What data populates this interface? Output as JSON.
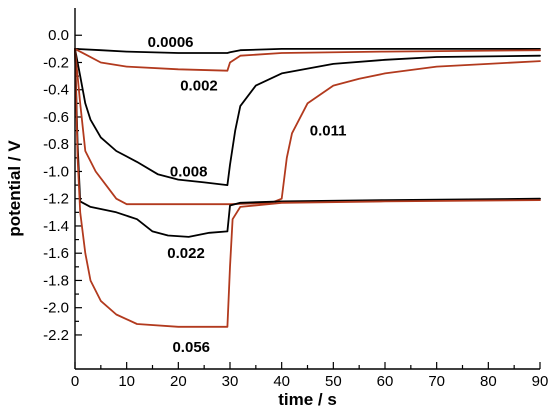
{
  "chart_data": {
    "type": "line",
    "xlabel": "time / s",
    "ylabel": "potential / V",
    "xlim": [
      0,
      90
    ],
    "ylim": [
      -2.45,
      0.2
    ],
    "xticks": [
      0,
      10,
      20,
      30,
      40,
      50,
      60,
      70,
      80,
      90
    ],
    "yticks": [
      0.0,
      -0.2,
      -0.4,
      -0.6,
      -0.8,
      -1.0,
      -1.2,
      -1.4,
      -1.6,
      -1.8,
      -2.0,
      -2.2
    ],
    "ytick_labels": [
      "0.0",
      "-0.2",
      "-0.4",
      "-0.6",
      "-0.8",
      "-1.0",
      "-1.2",
      "-1.4",
      "-1.6",
      "-1.8",
      "-2.0",
      "-2.2"
    ],
    "grid": false,
    "series": [
      {
        "color": "#000000",
        "points": [
          [
            0,
            -0.1
          ],
          [
            5,
            -0.11
          ],
          [
            10,
            -0.12
          ],
          [
            20,
            -0.13
          ],
          [
            29.5,
            -0.13
          ],
          [
            30,
            -0.125
          ],
          [
            32,
            -0.11
          ],
          [
            40,
            -0.1
          ],
          [
            60,
            -0.1
          ],
          [
            90,
            -0.1
          ]
        ]
      },
      {
        "color": "#b23a1e",
        "points": [
          [
            0,
            -0.1
          ],
          [
            2,
            -0.14
          ],
          [
            5,
            -0.2
          ],
          [
            10,
            -0.23
          ],
          [
            20,
            -0.25
          ],
          [
            29.5,
            -0.26
          ],
          [
            30,
            -0.2
          ],
          [
            32,
            -0.15
          ],
          [
            40,
            -0.13
          ],
          [
            60,
            -0.12
          ],
          [
            90,
            -0.11
          ]
        ]
      },
      {
        "color": "#000000",
        "points": [
          [
            0,
            -0.1
          ],
          [
            1,
            -0.3
          ],
          [
            2,
            -0.5
          ],
          [
            3,
            -0.62
          ],
          [
            5,
            -0.75
          ],
          [
            8,
            -0.85
          ],
          [
            12,
            -0.93
          ],
          [
            16,
            -1.02
          ],
          [
            20,
            -1.06
          ],
          [
            25,
            -1.08
          ],
          [
            29.5,
            -1.1
          ],
          [
            30,
            -0.95
          ],
          [
            31,
            -0.7
          ],
          [
            32,
            -0.52
          ],
          [
            35,
            -0.37
          ],
          [
            40,
            -0.28
          ],
          [
            50,
            -0.21
          ],
          [
            60,
            -0.18
          ],
          [
            70,
            -0.16
          ],
          [
            90,
            -0.15
          ]
        ]
      },
      {
        "color": "#b23a1e",
        "points": [
          [
            0,
            -0.1
          ],
          [
            1,
            -0.5
          ],
          [
            2,
            -0.85
          ],
          [
            4,
            -1.0
          ],
          [
            6,
            -1.1
          ],
          [
            8,
            -1.2
          ],
          [
            10,
            -1.24
          ],
          [
            20,
            -1.24
          ],
          [
            30,
            -1.24
          ],
          [
            38,
            -1.23
          ],
          [
            40,
            -1.2
          ],
          [
            41,
            -0.9
          ],
          [
            42,
            -0.72
          ],
          [
            45,
            -0.5
          ],
          [
            50,
            -0.37
          ],
          [
            55,
            -0.32
          ],
          [
            60,
            -0.28
          ],
          [
            70,
            -0.23
          ],
          [
            80,
            -0.21
          ],
          [
            90,
            -0.19
          ]
        ]
      },
      {
        "color": "#000000",
        "points": [
          [
            0,
            -0.1
          ],
          [
            0.5,
            -0.8
          ],
          [
            1,
            -1.22
          ],
          [
            3,
            -1.26
          ],
          [
            8,
            -1.3
          ],
          [
            12,
            -1.35
          ],
          [
            15,
            -1.44
          ],
          [
            18,
            -1.47
          ],
          [
            22,
            -1.48
          ],
          [
            26,
            -1.45
          ],
          [
            29.5,
            -1.44
          ],
          [
            30,
            -1.25
          ],
          [
            32,
            -1.23
          ],
          [
            40,
            -1.22
          ],
          [
            60,
            -1.21
          ],
          [
            90,
            -1.2
          ]
        ]
      },
      {
        "color": "#b23a1e",
        "points": [
          [
            0,
            -0.1
          ],
          [
            0.5,
            -0.9
          ],
          [
            1,
            -1.3
          ],
          [
            2,
            -1.6
          ],
          [
            3,
            -1.8
          ],
          [
            5,
            -1.95
          ],
          [
            8,
            -2.05
          ],
          [
            12,
            -2.12
          ],
          [
            20,
            -2.14
          ],
          [
            29.5,
            -2.14
          ],
          [
            30,
            -1.7
          ],
          [
            30.5,
            -1.35
          ],
          [
            32,
            -1.26
          ],
          [
            40,
            -1.23
          ],
          [
            60,
            -1.22
          ],
          [
            90,
            -1.21
          ]
        ]
      }
    ],
    "annotations": [
      {
        "text": "0.0006",
        "x": 18.5,
        "y": -0.05
      },
      {
        "text": "0.002",
        "x": 24,
        "y": -0.37
      },
      {
        "text": "0.008",
        "x": 22,
        "y": -1.0
      },
      {
        "text": "0.011",
        "x": 49,
        "y": -0.7
      },
      {
        "text": "0.022",
        "x": 21.5,
        "y": -1.6
      },
      {
        "text": "0.056",
        "x": 22.5,
        "y": -2.29
      }
    ]
  }
}
